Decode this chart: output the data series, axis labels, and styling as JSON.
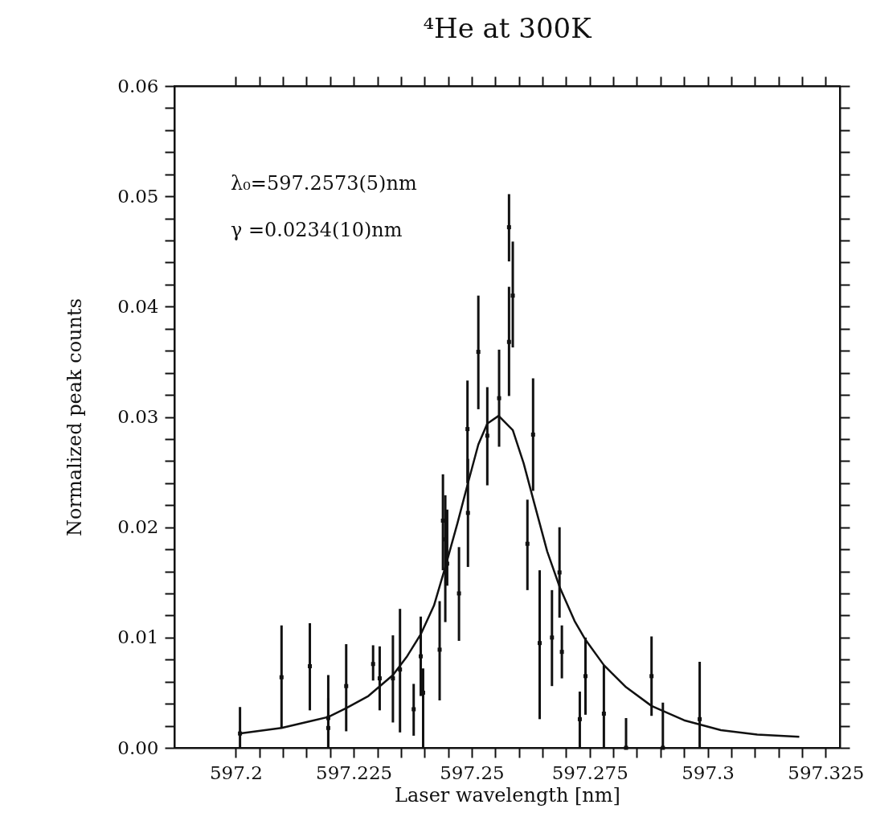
{
  "chart_data": {
    "type": "scatter",
    "title": "⁴He at 300K",
    "xlabel": "Laser wavelength [nm]",
    "ylabel": "Normalized peak counts",
    "annotations": [
      "λ₀=597.2573(5)nm",
      "γ =0.0234(10)nm"
    ],
    "xlim": [
      597.187,
      597.328
    ],
    "xticks": [
      597.2,
      {
        "value": 597.205,
        "label": null
      },
      {
        "value": 597.21,
        "label": null
      },
      {
        "value": 597.215,
        "label": null
      },
      {
        "value": 597.22,
        "label": null
      },
      597.225,
      {
        "value": 597.23,
        "label": null
      },
      {
        "value": 597.235,
        "label": null
      },
      {
        "value": 597.24,
        "label": null
      },
      {
        "value": 597.245,
        "label": null
      },
      597.25,
      {
        "value": 597.255,
        "label": null
      },
      {
        "value": 597.26,
        "label": null
      },
      {
        "value": 597.265,
        "label": null
      },
      {
        "value": 597.27,
        "label": null
      },
      597.275,
      {
        "value": 597.28,
        "label": null
      },
      {
        "value": 597.285,
        "label": null
      },
      {
        "value": 597.29,
        "label": null
      },
      {
        "value": 597.295,
        "label": null
      },
      597.3,
      {
        "value": 597.305,
        "label": null
      },
      {
        "value": 597.31,
        "label": null
      },
      {
        "value": 597.315,
        "label": null
      },
      {
        "value": 597.32,
        "label": null
      },
      597.325
    ],
    "ylim": [
      0,
      0.06
    ],
    "yticks": [
      {
        "value": 0,
        "label": "0.00"
      },
      {
        "value": 0.002,
        "label": null
      },
      {
        "value": 0.004,
        "label": null
      },
      {
        "value": 0.006,
        "label": null
      },
      {
        "value": 0.008,
        "label": null
      },
      {
        "value": 0.01,
        "label": "0.01"
      },
      {
        "value": 0.012,
        "label": null
      },
      {
        "value": 0.014,
        "label": null
      },
      {
        "value": 0.016,
        "label": null
      },
      {
        "value": 0.018,
        "label": null
      },
      {
        "value": 0.02,
        "label": "0.02"
      },
      {
        "value": 0.022,
        "label": null
      },
      {
        "value": 0.024,
        "label": null
      },
      {
        "value": 0.026,
        "label": null
      },
      {
        "value": 0.028,
        "label": null
      },
      {
        "value": 0.03,
        "label": "0.03"
      },
      {
        "value": 0.032,
        "label": null
      },
      {
        "value": 0.034,
        "label": null
      },
      {
        "value": 0.036,
        "label": null
      },
      {
        "value": 0.038,
        "label": null
      },
      {
        "value": 0.04,
        "label": "0.04"
      },
      {
        "value": 0.042,
        "label": null
      },
      {
        "value": 0.044,
        "label": null
      },
      {
        "value": 0.046,
        "label": null
      },
      {
        "value": 0.048,
        "label": null
      },
      {
        "value": 0.05,
        "label": "0.05"
      },
      {
        "value": 0.052,
        "label": null
      },
      {
        "value": 0.054,
        "label": null
      },
      {
        "value": 0.056,
        "label": null
      },
      {
        "value": 0.058,
        "label": null
      },
      {
        "value": 0.06,
        "label": "0.06"
      }
    ],
    "grid": false,
    "series": [
      {
        "type": "scatter",
        "color": "#111111",
        "marker": "square",
        "x": [
          597.2009,
          597.2097,
          597.2157,
          597.2196,
          597.2196,
          597.2234,
          597.2291,
          597.2305,
          597.2333,
          597.2348,
          597.2377,
          597.2392,
          597.2397,
          597.2432,
          597.2439,
          597.2444,
          597.2448,
          597.2473,
          597.2492,
          597.2491,
          597.2514,
          597.2533,
          597.2558,
          597.2579,
          597.2579,
          597.2587,
          597.263,
          597.2618,
          597.2644,
          597.267,
          597.2686,
          597.2691,
          597.2729,
          597.2741,
          597.278,
          597.2827,
          597.2881,
          597.2905,
          597.2983
        ],
        "values": [
          0.0013,
          0.0064,
          0.0074,
          0.0027,
          0.0018,
          0.0056,
          0.0076,
          0.0063,
          0.0063,
          0.0071,
          0.0035,
          0.0083,
          0.005,
          0.0089,
          0.0206,
          0.0189,
          0.0167,
          0.014,
          0.0213,
          0.0289,
          0.0359,
          0.0283,
          0.0317,
          0.0472,
          0.0368,
          0.041,
          0.0284,
          0.0185,
          0.0095,
          0.01,
          0.0159,
          0.0087,
          0.0026,
          0.0065,
          0.0031,
          0,
          0.0065,
          0,
          0.0026
        ],
        "errors": [
          [
            0,
            0.0037
          ],
          [
            0.0018,
            0.0111
          ],
          [
            0.0034,
            0.0113
          ],
          [
            0,
            0.0066
          ],
          [
            0,
            0.0045
          ],
          [
            0.0015,
            0.0094
          ],
          [
            0.0061,
            0.0093
          ],
          [
            0.0034,
            0.0092
          ],
          [
            0.0023,
            0.0102
          ],
          [
            0.0014,
            0.0126
          ],
          [
            0.0011,
            0.0058
          ],
          [
            0.0047,
            0.0119
          ],
          [
            0,
            0.0072
          ],
          [
            0.0043,
            0.0133
          ],
          [
            0.0161,
            0.0248
          ],
          [
            0.0114,
            0.0229
          ],
          [
            0.0147,
            0.0216
          ],
          [
            0.0097,
            0.0182
          ],
          [
            0.0164,
            0.0262
          ],
          [
            0.024,
            0.0333
          ],
          [
            0.0307,
            0.041
          ],
          [
            0.0238,
            0.0327
          ],
          [
            0.0273,
            0.0361
          ],
          [
            0.0441,
            0.0502
          ],
          [
            0.0319,
            0.0418
          ],
          [
            0.0363,
            0.0459
          ],
          [
            0.0233,
            0.0335
          ],
          [
            0.0143,
            0.0225
          ],
          [
            0.0026,
            0.0161
          ],
          [
            0.0056,
            0.0143
          ],
          [
            0.0118,
            0.02
          ],
          [
            0.0063,
            0.0111
          ],
          [
            0,
            0.0051
          ],
          [
            0.003,
            0.01
          ],
          [
            0,
            0.0075
          ],
          [
            0,
            0.0027
          ],
          [
            0.0029,
            0.0101
          ],
          [
            0,
            0.0041
          ],
          [
            0,
            0.0078
          ]
        ]
      },
      {
        "type": "line",
        "color": "#111111",
        "marker": "none",
        "line_style": "solid",
        "x": [
          597.2007,
          597.2097,
          597.2157,
          597.2196,
          597.2234,
          597.2281,
          597.2333,
          597.2363,
          597.2392,
          597.242,
          597.2444,
          597.247,
          597.2492,
          597.2514,
          597.2533,
          597.2557,
          597.2587,
          597.261,
          597.2633,
          597.266,
          597.2687,
          597.2718,
          597.2741,
          597.278,
          597.2827,
          597.2881,
          597.295,
          597.3028,
          597.3105,
          597.3194
        ],
        "values": [
          0.0013,
          0.0018,
          0.0024,
          0.0028,
          0.0036,
          0.0047,
          0.0066,
          0.0083,
          0.0103,
          0.0129,
          0.0164,
          0.0204,
          0.024,
          0.0275,
          0.0294,
          0.0301,
          0.0288,
          0.0258,
          0.0221,
          0.0178,
          0.0145,
          0.0115,
          0.0098,
          0.0075,
          0.0055,
          0.0038,
          0.0025,
          0.0016,
          0.0012,
          0.001
        ]
      }
    ]
  }
}
